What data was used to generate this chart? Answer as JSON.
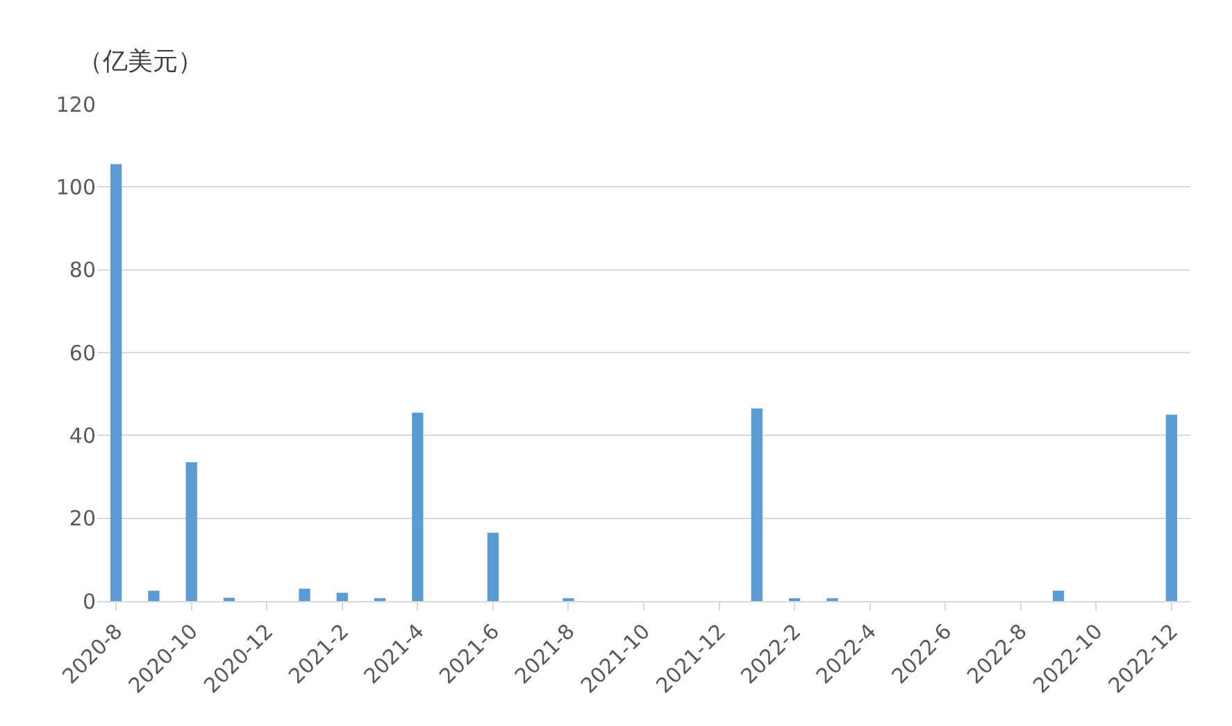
{
  "chart_data": {
    "type": "bar",
    "ylabel": "（亿美元）",
    "categories": [
      "2020-8",
      null,
      "2020-10",
      null,
      "2020-12",
      null,
      "2021-2",
      null,
      "2021-4",
      null,
      "2021-6",
      null,
      "2021-8",
      null,
      "2021-10",
      null,
      "2021-12",
      null,
      "2022-2",
      null,
      "2022-4",
      null,
      "2022-6",
      null,
      "2022-8",
      null,
      "2022-10",
      null,
      "2022-12"
    ],
    "values": [
      105.5,
      2.5,
      33.5,
      0.8,
      0,
      3,
      2,
      0.7,
      45.5,
      0,
      16.5,
      0,
      0.7,
      0,
      0,
      0,
      0,
      46.5,
      0.7,
      0.7,
      0,
      0,
      0,
      0,
      0,
      2.5,
      0,
      0,
      45
    ],
    "color": "#5b9bd5",
    "ylim": [
      0,
      120
    ],
    "yticks": [
      0,
      20,
      40,
      60,
      80,
      100,
      120
    ],
    "grid": "y"
  }
}
